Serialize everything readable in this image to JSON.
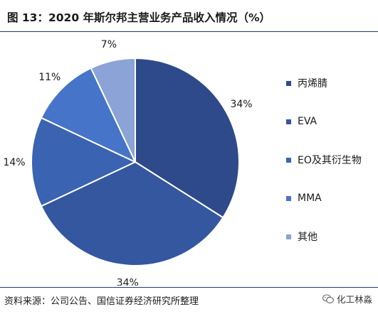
{
  "header": {
    "title": "图 13：2020 年斯尔邦主营业务产品收入情况（%）"
  },
  "footer": {
    "source": "资料来源：公司公告、国信证券经济研究所整理",
    "watermark": "化工林淼"
  },
  "icons": {
    "watermark": "wechat-icon"
  },
  "chart_data": {
    "type": "pie",
    "title": "",
    "legend_position": "right",
    "slices": [
      {
        "name": "丙烯腈",
        "value": 34,
        "label": "34%",
        "color": "#2e4a8a"
      },
      {
        "name": "EVA",
        "value": 34,
        "label": "34%",
        "color": "#3457a0"
      },
      {
        "name": "EO及其衍生物",
        "value": 14,
        "label": "14%",
        "color": "#3a63b1"
      },
      {
        "name": "MMA",
        "value": 11,
        "label": "11%",
        "color": "#4674c9"
      },
      {
        "name": "其他",
        "value": 7,
        "label": "7%",
        "color": "#8ba3d6"
      }
    ]
  }
}
